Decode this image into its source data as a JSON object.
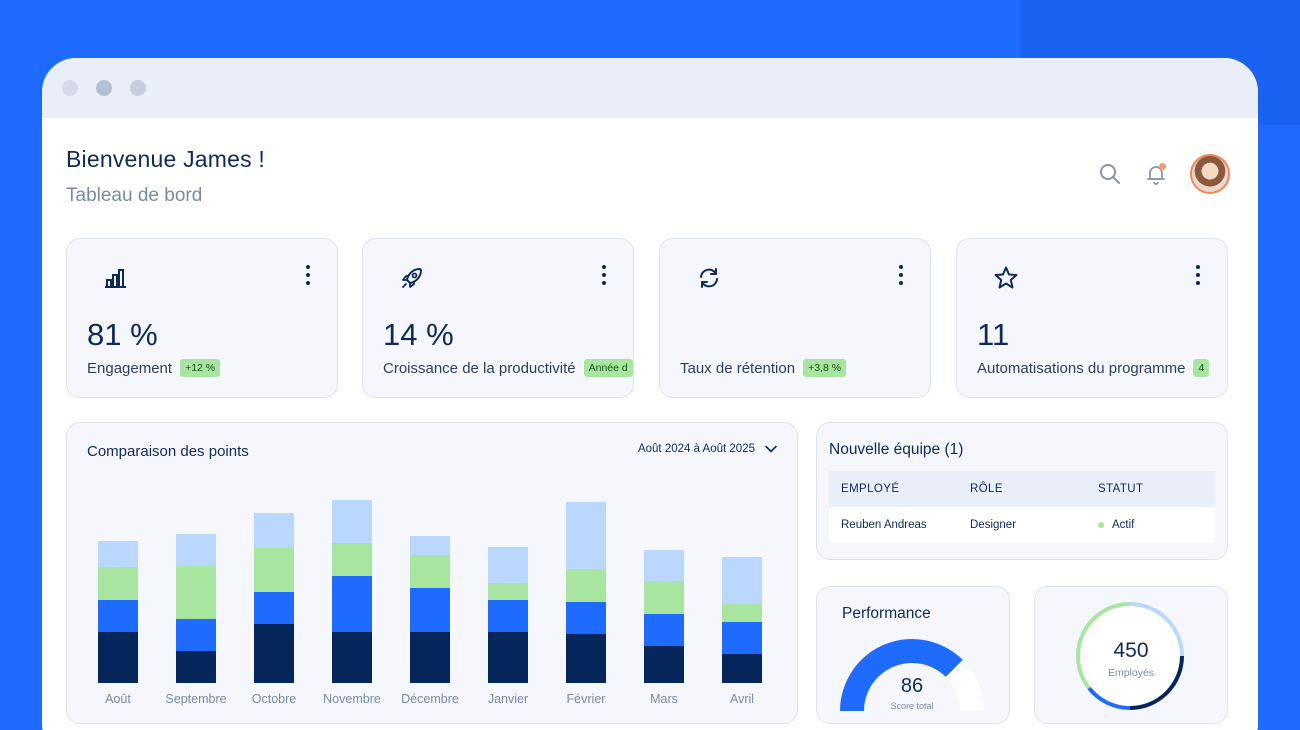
{
  "header": {
    "greeting": "Bienvenue James !",
    "subtitle": "Tableau de bord"
  },
  "stats": [
    {
      "icon": "bar-chart-icon",
      "value": "81 %",
      "label": "Engagement",
      "badge": "+12 %"
    },
    {
      "icon": "rocket-icon",
      "value": "14 %",
      "label": "Croissance de la productivité",
      "badge": "Année d"
    },
    {
      "icon": "refresh-icon",
      "value": "",
      "label": "Taux de rétention",
      "badge": "+3,8 %"
    },
    {
      "icon": "star-icon",
      "value": "11",
      "label": "Automatisations du programme",
      "badge": "4"
    }
  ],
  "comparison": {
    "title": "Comparaison des points",
    "range": "Août 2024 à Août 2025"
  },
  "chart_data": {
    "type": "bar",
    "stacked": true,
    "categories": [
      "Août",
      "Septembre",
      "Octobre",
      "Novembre",
      "Décembre",
      "Janvier",
      "Février",
      "Mars",
      "Avril"
    ],
    "series": [
      {
        "color": "#05265a",
        "values": [
          51,
          32,
          59,
          51,
          51,
          51,
          49,
          37,
          29
        ]
      },
      {
        "color": "#1f6bff",
        "values": [
          32,
          32,
          32,
          56,
          44,
          32,
          32,
          32,
          32
        ]
      },
      {
        "color": "#a8e5a0",
        "values": [
          33,
          53,
          44,
          33,
          33,
          17,
          33,
          33,
          18
        ]
      },
      {
        "color": "#b9d7ff",
        "values": [
          26,
          32,
          35,
          43,
          19,
          36,
          67,
          31,
          47
        ]
      }
    ],
    "ylim": [
      0,
      190
    ],
    "grid": false,
    "legend": "none"
  },
  "team": {
    "title": "Nouvelle équipe (1)",
    "columns": [
      "EMPLOYÉ",
      "RÔLE",
      "STATUT"
    ],
    "rows": [
      {
        "employee": "Reuben Andreas",
        "role": "Designer",
        "status": "Actif",
        "status_color": "#a8e5a0"
      }
    ]
  },
  "performance": {
    "title": "Performance",
    "value": "86",
    "sublabel": "Score total",
    "fraction": 0.86,
    "color": "#1f6bff"
  },
  "employees": {
    "value": "450",
    "sublabel": "Employés"
  },
  "colors": {
    "background": "#1f6bff",
    "accent": "#1f6bff",
    "navy": "#0f2a56",
    "green": "#a8e5a0",
    "light_blue": "#b9d7ff"
  }
}
